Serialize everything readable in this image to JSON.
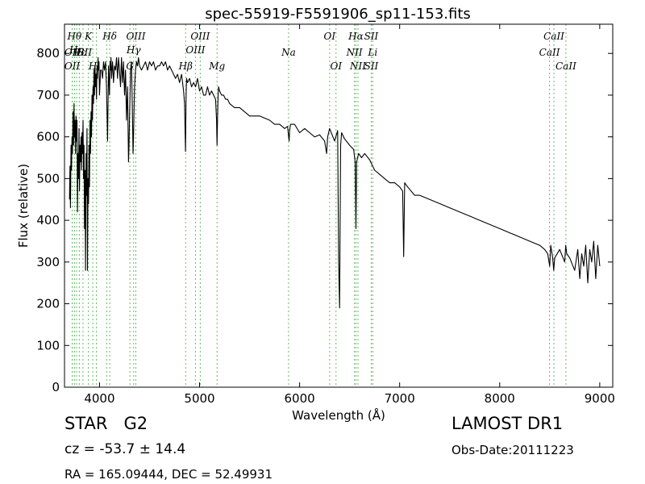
{
  "chart_data": {
    "type": "line",
    "title": "spec-55919-F5591906_sp11-153.fits",
    "xlabel": "Wavelength (Å)",
    "ylabel": "Flux (relative)",
    "xlim": [
      3650,
      9130
    ],
    "ylim": [
      0,
      870
    ],
    "xticks": [
      4000,
      5000,
      6000,
      7000,
      8000,
      9000
    ],
    "yticks": [
      0,
      100,
      200,
      300,
      400,
      500,
      600,
      700,
      800
    ],
    "grid": false,
    "line_color": "#000000",
    "marker_color": "#66bb66",
    "series": [
      {
        "x": [
          3700,
          3705,
          3710,
          3715,
          3720,
          3725,
          3730,
          3735,
          3740,
          3745,
          3750,
          3755,
          3760,
          3765,
          3770,
          3775,
          3780,
          3785,
          3790,
          3795,
          3800,
          3805,
          3810,
          3815,
          3820,
          3825,
          3830,
          3835,
          3840,
          3845,
          3850,
          3855,
          3860,
          3865,
          3870,
          3875,
          3880,
          3885,
          3890,
          3895,
          3900,
          3905,
          3910,
          3915,
          3920,
          3925,
          3930,
          3935,
          3940,
          3945,
          3950,
          3955,
          3960,
          3965,
          3970,
          3975,
          3980,
          3985,
          3990,
          3995,
          4000,
          4010,
          4020,
          4030,
          4040,
          4050,
          4060,
          4070,
          4080,
          4090,
          4100,
          4105,
          4110,
          4115,
          4120,
          4130,
          4140,
          4150,
          4160,
          4170,
          4180,
          4190,
          4200,
          4210,
          4220,
          4230,
          4240,
          4250,
          4260,
          4270,
          4280,
          4290,
          4295,
          4300,
          4305,
          4310,
          4320,
          4330,
          4335,
          4340,
          4345,
          4350,
          4360,
          4370,
          4380,
          4390,
          4400,
          4420,
          4440,
          4460,
          4480,
          4500,
          4520,
          4540,
          4560,
          4580,
          4600,
          4620,
          4640,
          4660,
          4680,
          4700,
          4720,
          4740,
          4760,
          4780,
          4800,
          4820,
          4840,
          4850,
          4855,
          4860,
          4865,
          4870,
          4880,
          4900,
          4920,
          4940,
          4960,
          4980,
          5000,
          5020,
          5040,
          5060,
          5080,
          5100,
          5120,
          5140,
          5160,
          5170,
          5175,
          5180,
          5185,
          5190,
          5200,
          5220,
          5240,
          5260,
          5280,
          5300,
          5350,
          5400,
          5450,
          5500,
          5550,
          5600,
          5650,
          5700,
          5750,
          5800,
          5850,
          5880,
          5890,
          5895,
          5900,
          5910,
          5950,
          6000,
          6050,
          6100,
          6150,
          6200,
          6250,
          6270,
          6280,
          6300,
          6350,
          6380,
          6390,
          6400,
          6410,
          6420,
          6450,
          6500,
          6540,
          6555,
          6563,
          6570,
          6590,
          6620,
          6650,
          6700,
          6750,
          6800,
          6850,
          6900,
          6950,
          7000,
          7030,
          7040,
          7050,
          7080,
          7150,
          7200,
          7300,
          7400,
          7500,
          7600,
          7700,
          7800,
          7900,
          8000,
          8100,
          8200,
          8300,
          8400,
          8450,
          8480,
          8500,
          8510,
          8530,
          8540,
          8550,
          8600,
          8650,
          8660,
          8670,
          8700,
          8750,
          8780,
          8800,
          8820,
          8840,
          8860,
          8880,
          8900,
          8920,
          8940,
          8960,
          8980,
          9000
        ],
        "y": [
          450,
          530,
          430,
          580,
          520,
          600,
          560,
          660,
          580,
          680,
          600,
          640,
          560,
          650,
          590,
          640,
          420,
          560,
          500,
          620,
          470,
          580,
          540,
          600,
          520,
          610,
          560,
          640,
          500,
          580,
          380,
          520,
          280,
          560,
          460,
          620,
          280,
          500,
          440,
          580,
          480,
          640,
          560,
          660,
          600,
          700,
          640,
          720,
          680,
          760,
          700,
          770,
          720,
          750,
          690,
          770,
          740,
          790,
          760,
          780,
          700,
          760,
          760,
          740,
          780,
          760,
          780,
          720,
          590,
          770,
          700,
          780,
          760,
          790,
          740,
          780,
          730,
          770,
          760,
          790,
          740,
          790,
          760,
          720,
          790,
          730,
          780,
          700,
          760,
          640,
          720,
          540,
          580,
          650,
          700,
          760,
          780,
          640,
          560,
          600,
          660,
          720,
          760,
          780,
          770,
          790,
          770,
          760,
          770,
          780,
          760,
          780,
          770,
          780,
          760,
          770,
          770,
          780,
          770,
          780,
          760,
          770,
          760,
          750,
          740,
          750,
          730,
          750,
          710,
          680,
          620,
          565,
          700,
          740,
          730,
          740,
          720,
          730,
          720,
          740,
          710,
          720,
          700,
          700,
          720,
          700,
          710,
          700,
          690,
          640,
          580,
          650,
          700,
          720,
          710,
          700,
          700,
          690,
          690,
          680,
          670,
          670,
          660,
          650,
          650,
          650,
          645,
          640,
          630,
          630,
          620,
          625,
          600,
          590,
          615,
          630,
          630,
          610,
          620,
          610,
          600,
          605,
          590,
          560,
          600,
          620,
          590,
          615,
          300,
          190,
          580,
          610,
          595,
          580,
          570,
          540,
          380,
          540,
          560,
          550,
          560,
          545,
          520,
          510,
          500,
          490,
          490,
          480,
          470,
          313,
          490,
          480,
          460,
          460,
          450,
          440,
          430,
          420,
          410,
          400,
          390,
          380,
          370,
          360,
          350,
          340,
          330,
          320,
          290,
          340,
          310,
          280,
          310,
          330,
          300,
          340,
          320,
          310,
          280,
          330,
          260,
          320,
          290,
          340,
          250,
          330,
          300,
          350,
          260,
          340,
          290
        ]
      }
    ],
    "lines": [
      {
        "w": 3727,
        "label": "OII",
        "row": 2,
        "align": "c"
      },
      {
        "w": 3727,
        "label": "OII",
        "row": 4,
        "align": "c"
      },
      {
        "w": 3750,
        "label": "Hθ",
        "row": 1,
        "align": "c"
      },
      {
        "w": 3771,
        "label": "Hη",
        "row": 3,
        "align": "c"
      },
      {
        "w": 3798,
        "label": "Hε",
        "row": 2,
        "align": "c"
      },
      {
        "w": 3835,
        "label": "ISII",
        "row": 2,
        "align": "c"
      },
      {
        "w": 3889,
        "label": "K",
        "row": 1,
        "align": "c"
      },
      {
        "w": 3933,
        "label": "H",
        "row": 4,
        "align": "c"
      },
      {
        "w": 3969,
        "label": "",
        "row": 0,
        "align": "c"
      },
      {
        "w": 4072,
        "label": "",
        "row": 0,
        "align": "c"
      },
      {
        "w": 4102,
        "label": "Hδ",
        "row": 1,
        "align": "c"
      },
      {
        "w": 4304,
        "label": "G",
        "row": 4,
        "align": "c"
      },
      {
        "w": 4341,
        "label": "Hγ",
        "row": 3,
        "align": "c"
      },
      {
        "w": 4363,
        "label": "OIII",
        "row": 1,
        "align": "c"
      },
      {
        "w": 4861,
        "label": "Hβ",
        "row": 4,
        "align": "c"
      },
      {
        "w": 4959,
        "label": "OIII",
        "row": 3,
        "align": "c"
      },
      {
        "w": 5007,
        "label": "OIII",
        "row": 1,
        "align": "c"
      },
      {
        "w": 5175,
        "label": "Mg",
        "row": 4,
        "align": "c"
      },
      {
        "w": 5890,
        "label": "Na",
        "row": 2,
        "align": "c"
      },
      {
        "w": 6300,
        "label": "OI",
        "row": 1,
        "align": "c"
      },
      {
        "w": 6364,
        "label": "OI",
        "row": 4,
        "align": "c"
      },
      {
        "w": 6548,
        "label": "NII",
        "row": 2,
        "align": "c"
      },
      {
        "w": 6563,
        "label": "Hα",
        "row": 1,
        "align": "c"
      },
      {
        "w": 6583,
        "label": "NII",
        "row": 4,
        "align": "c"
      },
      {
        "w": 6716,
        "label": "SII",
        "row": 1,
        "align": "c"
      },
      {
        "w": 6716,
        "label": "SII",
        "row": 4,
        "align": "c"
      },
      {
        "w": 6731,
        "label": "Li",
        "row": 2,
        "align": "c"
      },
      {
        "w": 8498,
        "label": "CaII",
        "row": 2,
        "align": "c"
      },
      {
        "w": 8542,
        "label": "CaII",
        "row": 1,
        "align": "c"
      },
      {
        "w": 8662,
        "label": "CaII",
        "row": 4,
        "align": "c"
      }
    ]
  },
  "info": {
    "type_label": "STAR",
    "subclass": "G2",
    "cz": "cz = -53.7  ± 14.4",
    "radec": "RA = 165.09444, DEC = 52.49931",
    "survey": "LAMOST DR1",
    "obs_date": "Obs-Date:20111223"
  }
}
